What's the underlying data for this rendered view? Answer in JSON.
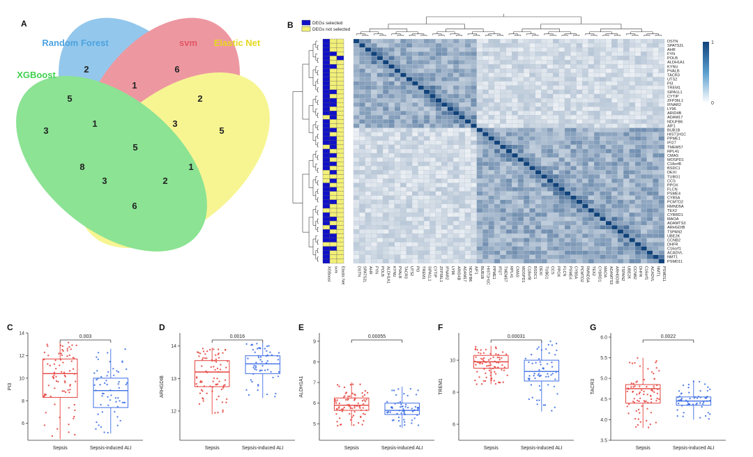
{
  "figure": {
    "panels": {
      "A": "A",
      "B": "B",
      "C": "C",
      "D": "D",
      "E": "E",
      "F": "F",
      "G": "G"
    }
  },
  "venn": {
    "sets": [
      {
        "name": "Random Forest",
        "color": "#4da3e0"
      },
      {
        "name": "svm",
        "color": "#e25563"
      },
      {
        "name": "Elastic Net",
        "color": "#f2f04a"
      },
      {
        "name": "XGBoost",
        "color": "#3fd14d"
      }
    ],
    "regions": {
      "rf_only": "2",
      "svm_only": "6",
      "en_only": "5",
      "xgb_only": "3",
      "rf_svm": "1",
      "rf_xgb": "5",
      "svm_en": "2",
      "en_xgb": "6",
      "rf_svm_xgb": "1",
      "rf_svm_en": "3",
      "rf_en_xgb": "3",
      "svm_en_xgb": "1",
      "rf_xgb_b": "8",
      "en_xgb_b": "2",
      "all": "5"
    }
  },
  "heatmap": {
    "legend": {
      "selected": "DEGs selected",
      "not_selected": "DEGs not selected",
      "selected_color": "#1010c8",
      "not_selected_color": "#f3f07a"
    },
    "colorbar": {
      "max": "1",
      "min": "0",
      "high": "#10427a",
      "low": "#ffffff"
    },
    "methods": [
      "XGBoost",
      "svm",
      "Elastic Net"
    ],
    "genes": [
      "DSTN",
      "SPATS2L",
      "AHR",
      "FYN",
      "POLB",
      "ALDH1A1",
      "KYNU",
      "PVALB",
      "TACR3",
      "UTS2",
      "PI3",
      "TREM1",
      "SIPA1L1",
      "CYTIP",
      "ZFP36L1",
      "IFNAR2",
      "LY96",
      "ARID4B",
      "ADAM17",
      "NDUFB6",
      "AIF1",
      "BUB1B",
      "HIST1H1C",
      "PPME1",
      "IFI27",
      "TMEM57",
      "RPL41",
      "CMAS",
      "MOSPD1",
      "C18orf8",
      "BSDC1",
      "DEXI",
      "TUBG1",
      "CCS",
      "PPOX",
      "FLCN",
      "PSME4",
      "CYB5A",
      "PCMTD2",
      "RMND5A",
      "TEX2",
      "CYBRD1",
      "MAOA",
      "ADAMTS3",
      "ARHGDIB",
      "TSPAN2",
      "UBE2K",
      "CCNB2",
      "DHFR",
      "C16orf1",
      "ACADVL",
      "NMT1",
      "PSMD11"
    ],
    "block_split": 21
  },
  "boxplots": [
    {
      "panel": "C",
      "gene": "PI3",
      "pvalue": "0.003",
      "ylim": [
        4.5,
        14
      ],
      "yticks": [
        "6",
        "8",
        "10",
        "12",
        "14"
      ],
      "ytick_vals": [
        6,
        8,
        10,
        12,
        14
      ],
      "groups": [
        {
          "name": "Sepsis",
          "color": "#e4423c",
          "q1": 8.3,
          "median": 10.4,
          "q3": 11.7,
          "wmin": 4.6,
          "wmax": 13.2,
          "n": 80
        },
        {
          "name": "Sepsis-induced ALI",
          "color": "#3c6de4",
          "q1": 7.4,
          "median": 8.9,
          "q3": 10.0,
          "wmin": 5.1,
          "wmax": 12.6,
          "n": 60
        }
      ]
    },
    {
      "panel": "D",
      "gene": "ARHGDIB",
      "pvalue": "0.0016",
      "ylim": [
        11.1,
        14.4
      ],
      "yticks": [
        "12",
        "13",
        "14"
      ],
      "ytick_vals": [
        12,
        13,
        14
      ],
      "groups": [
        {
          "name": "Sepsis",
          "color": "#e4423c",
          "q1": 12.75,
          "median": 13.2,
          "q3": 13.55,
          "wmin": 11.9,
          "wmax": 13.95,
          "n": 80
        },
        {
          "name": "Sepsis-induced ALI",
          "color": "#3c6de4",
          "q1": 13.15,
          "median": 13.45,
          "q3": 13.7,
          "wmin": 12.4,
          "wmax": 14.1,
          "n": 60
        }
      ]
    },
    {
      "panel": "E",
      "gene": "ALDH1A1",
      "pvalue": "0.00055",
      "ylim": [
        4.2,
        9.4
      ],
      "yticks": [
        "5",
        "6",
        "7",
        "8",
        "9"
      ],
      "ytick_vals": [
        5,
        6,
        7,
        8,
        9
      ],
      "groups": [
        {
          "name": "Sepsis",
          "color": "#e4423c",
          "q1": 5.65,
          "median": 5.9,
          "q3": 6.25,
          "wmin": 4.9,
          "wmax": 7.0,
          "n": 80
        },
        {
          "name": "Sepsis-induced ALI",
          "color": "#3c6de4",
          "q1": 5.45,
          "median": 5.65,
          "q3": 6.0,
          "wmin": 4.8,
          "wmax": 6.8,
          "n": 60
        }
      ]
    },
    {
      "panel": "F",
      "gene": "TREM1",
      "pvalue": "0.00031",
      "ylim": [
        5.0,
        11.7
      ],
      "yticks": [
        "6",
        "8",
        "10"
      ],
      "ytick_vals": [
        6,
        8,
        10
      ],
      "groups": [
        {
          "name": "Sepsis",
          "color": "#e4423c",
          "q1": 9.5,
          "median": 9.9,
          "q3": 10.3,
          "wmin": 8.5,
          "wmax": 10.9,
          "n": 80
        },
        {
          "name": "Sepsis-induced ALI",
          "color": "#3c6de4",
          "q1": 8.7,
          "median": 9.3,
          "q3": 10.0,
          "wmin": 6.8,
          "wmax": 11.2,
          "n": 60
        }
      ]
    },
    {
      "panel": "G",
      "gene": "TACR3",
      "pvalue": "0.0022",
      "ylim": [
        3.5,
        6.1
      ],
      "yticks": [
        "3.5",
        "4.0",
        "4.5",
        "5.0",
        "5.5",
        "6.0"
      ],
      "ytick_vals": [
        3.5,
        4.0,
        4.5,
        5.0,
        5.5,
        6.0
      ],
      "groups": [
        {
          "name": "Sepsis",
          "color": "#e4423c",
          "q1": 4.4,
          "median": 4.75,
          "q3": 4.85,
          "wmin": 3.8,
          "wmax": 5.5,
          "n": 80
        },
        {
          "name": "Sepsis-induced ALI",
          "color": "#3c6de4",
          "q1": 4.35,
          "median": 4.45,
          "q3": 4.55,
          "wmin": 4.0,
          "wmax": 4.95,
          "n": 60
        }
      ]
    }
  ]
}
